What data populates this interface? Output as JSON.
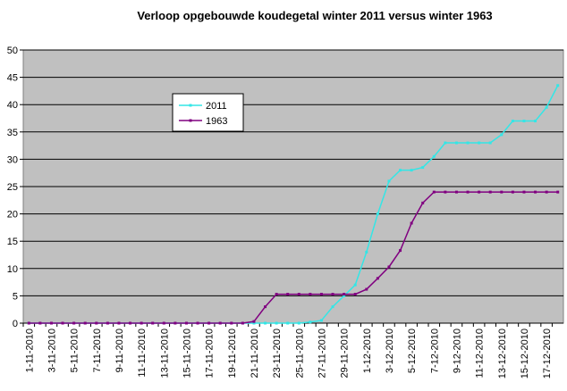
{
  "chart_data": {
    "type": "line",
    "title": "Verloop opgebouwde koudegetal winter 2011 versus winter 1963",
    "categories": [
      "1-11-2010",
      null,
      "3-11-2010",
      null,
      "5-11-2010",
      null,
      "7-11-2010",
      null,
      "9-11-2010",
      null,
      "11-11-2010",
      null,
      "13-11-2010",
      null,
      "15-11-2010",
      null,
      "17-11-2010",
      null,
      "19-11-2010",
      null,
      "21-11-2010",
      null,
      "23-11-2010",
      null,
      "25-11-2010",
      null,
      "27-11-2010",
      null,
      "29-11-2010",
      null,
      "1-12-2010",
      null,
      "3-12-2010",
      null,
      "5-12-2010",
      null,
      "7-12-2010",
      null,
      "9-12-2010",
      null,
      "11-12-2010",
      null,
      "13-12-2010",
      null,
      "15-12-2010",
      null,
      "17-12-2010",
      null
    ],
    "series": [
      {
        "name": "2011",
        "color": "#33e6e6",
        "values": [
          0,
          0,
          0,
          0,
          0,
          0,
          0,
          0,
          0,
          0,
          0,
          0,
          0,
          0,
          0,
          0,
          0,
          0,
          0,
          0,
          0,
          0,
          0,
          0,
          0,
          0.2,
          0.5,
          3,
          5,
          7,
          13,
          20,
          26,
          28,
          28,
          28.5,
          30.5,
          33,
          33,
          33,
          33,
          33,
          34.5,
          37,
          37,
          37,
          39.5,
          43.5
        ]
      },
      {
        "name": "1963",
        "color": "#800080",
        "values": [
          0,
          0,
          0,
          0,
          0,
          0,
          0,
          0,
          0,
          0,
          0,
          0,
          0,
          0,
          0,
          0,
          0,
          0,
          0,
          0,
          0.3,
          3,
          5.3,
          5.3,
          5.3,
          5.3,
          5.3,
          5.3,
          5.3,
          5.3,
          6.2,
          8.2,
          10.3,
          13.3,
          18.3,
          22,
          24,
          24,
          24,
          24,
          24,
          24,
          24,
          24,
          24,
          24,
          24,
          24
        ]
      }
    ],
    "ylim": [
      0,
      50
    ],
    "yticks": [
      0,
      5,
      10,
      15,
      20,
      25,
      30,
      35,
      40,
      45,
      50
    ],
    "grid": true
  }
}
